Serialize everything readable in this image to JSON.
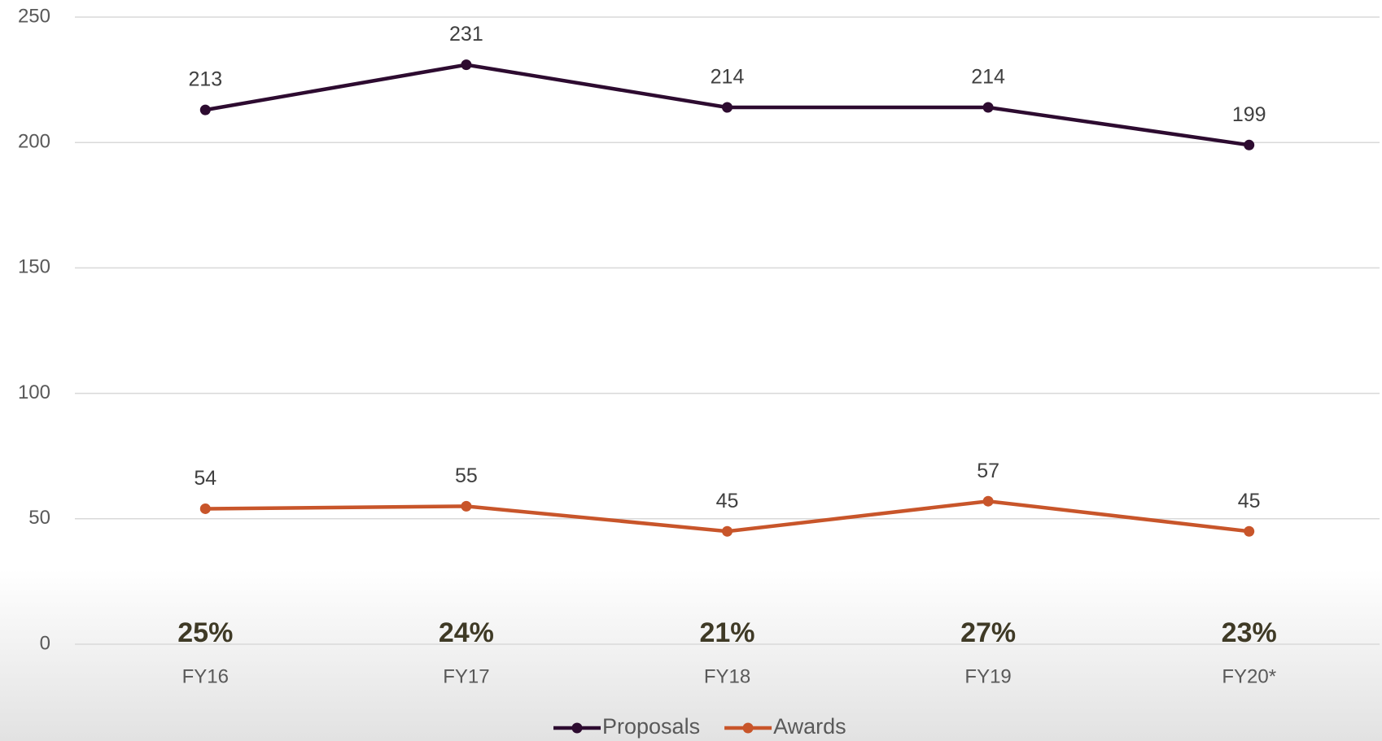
{
  "chart_data": {
    "type": "line",
    "categories": [
      "FY16",
      "FY17",
      "FY18",
      "FY19",
      "FY20*"
    ],
    "series": [
      {
        "name": "Proposals",
        "color": "#2d0b30",
        "values": [
          213,
          231,
          214,
          214,
          199
        ]
      },
      {
        "name": "Awards",
        "color": "#c8552a",
        "values": [
          54,
          55,
          45,
          57,
          45
        ]
      }
    ],
    "annotations": [
      "25%",
      "24%",
      "21%",
      "27%",
      "23%"
    ],
    "ylim": [
      0,
      250
    ],
    "yticks": [
      0,
      50,
      100,
      150,
      200,
      250
    ],
    "grid": true,
    "legend": "bottom"
  }
}
